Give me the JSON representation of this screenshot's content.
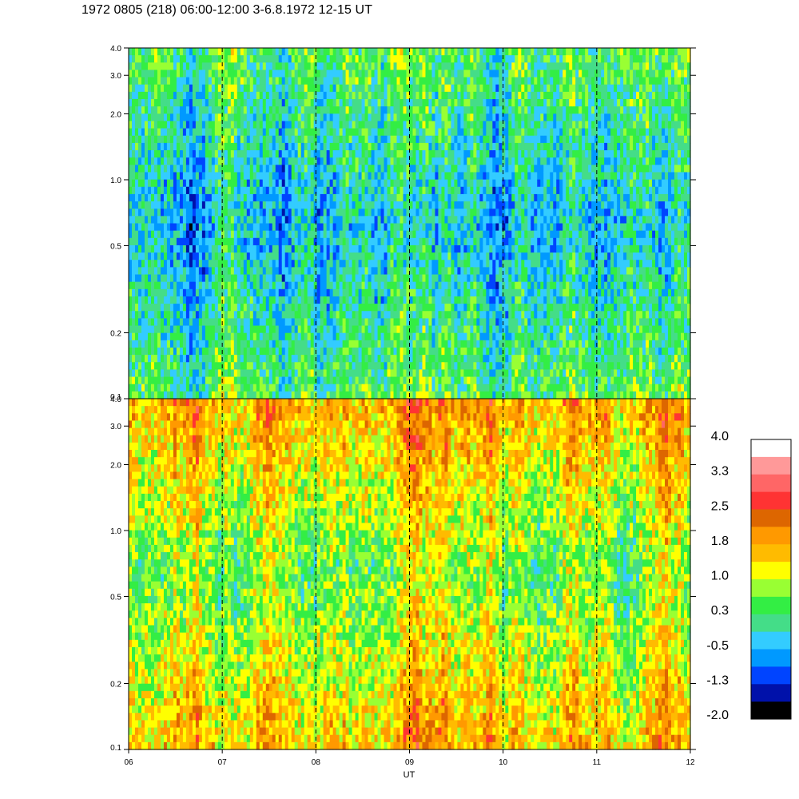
{
  "title": "1972 0805 (218) 06:00-12:00 3-6.8.1972  12-15 UT",
  "chart_data": [
    {
      "type": "heatmap",
      "panel": "top",
      "description_of_values": "spectrogram intensity, colour-coded",
      "x": {
        "label": "UT",
        "range": [
          6,
          12
        ],
        "ticks": [
          "06",
          "07",
          "08",
          "09",
          "10",
          "11",
          "12"
        ]
      },
      "y": {
        "label": "",
        "scale": "log",
        "range": [
          0.1,
          4.0
        ],
        "ticks": [
          "0.1",
          "0.2",
          "0.5",
          "1.0",
          "2.0",
          "3.0",
          "4.0"
        ]
      },
      "dashed_vertical_lines_at": [
        7,
        8,
        9,
        10,
        11
      ],
      "dominant_levels": {
        "high_freq": 0.3,
        "mid_freq": -0.5,
        "low_freq": 0.3
      }
    },
    {
      "type": "heatmap",
      "panel": "bottom",
      "description_of_values": "spectrogram intensity, colour-coded",
      "x": {
        "label": "UT",
        "range": [
          6,
          12
        ],
        "ticks": [
          "06",
          "07",
          "08",
          "09",
          "10",
          "11",
          "12"
        ]
      },
      "y": {
        "label": "",
        "scale": "log",
        "range": [
          0.1,
          4.0
        ],
        "ticks": [
          "0.1",
          "0.2",
          "0.5",
          "1.0",
          "2.0",
          "3.0",
          "4.0"
        ]
      },
      "dashed_vertical_lines_at": [
        7,
        8,
        9,
        10,
        11
      ],
      "dominant_levels": {
        "high_freq": 1.8,
        "mid_freq": 0.6,
        "low_freq": 1.6
      }
    }
  ],
  "colorbar": {
    "labels": [
      "4.0",
      "3.3",
      "2.5",
      "1.8",
      "1.0",
      "0.3",
      "-0.5",
      "-1.3",
      "-2.0"
    ],
    "range": [
      -2.0,
      4.0
    ],
    "colors_top_to_bottom": [
      "#ffffff",
      "#ff9999",
      "#ff6666",
      "#ff3333",
      "#dd6600",
      "#ff9900",
      "#ffbb00",
      "#ffff00",
      "#99ff33",
      "#33ee44",
      "#44dd88",
      "#33ccff",
      "#0099ff",
      "#0044ff",
      "#0011aa",
      "#000000"
    ]
  },
  "xlabel": "UT",
  "xticks": [
    "06",
    "07",
    "08",
    "09",
    "10",
    "11",
    "12"
  ],
  "yticks": [
    "0.1",
    "0.2",
    "0.5",
    "1.0",
    "2.0",
    "3.0",
    "4.0"
  ]
}
